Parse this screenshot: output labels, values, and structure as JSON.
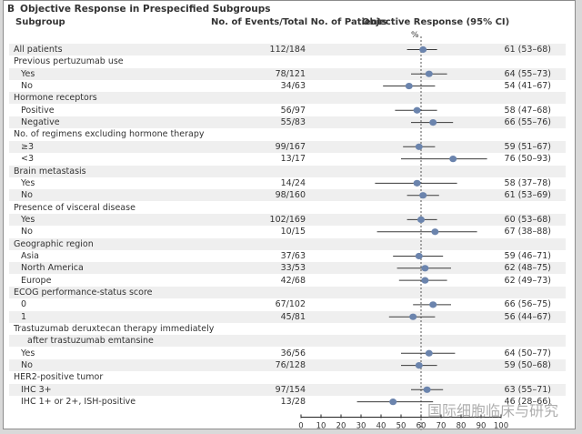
{
  "panel_label": "B",
  "title": "Objective Response in Prespecified Subgroups",
  "headers": {
    "subgroup": "Subgroup",
    "events": "No. of Events/Total No. of Patients",
    "response": "Objective Response (95% CI)",
    "unit": "%"
  },
  "watermark": "国际细胞临床与研究",
  "colors": {
    "marker": "#6b84ad",
    "ci_line": "#3a3a3a",
    "shade": "#efefef",
    "ref_line": "#555555"
  },
  "chart_data": {
    "type": "forest",
    "title": "Objective Response in Prespecified Subgroups",
    "xlabel": "%",
    "xlim": [
      0,
      100
    ],
    "xticks": [
      0,
      10,
      20,
      30,
      40,
      50,
      60,
      70,
      80,
      90,
      100
    ],
    "reference_line": 60,
    "rows": [
      {
        "label": "All patients",
        "kind": "item",
        "events": "112/184",
        "estimate": 61,
        "low": 53,
        "high": 68,
        "text": "61 (53–68)"
      },
      {
        "label": "Previous pertuzumab use",
        "kind": "group"
      },
      {
        "label": "Yes",
        "kind": "sub",
        "events": "78/121",
        "estimate": 64,
        "low": 55,
        "high": 73,
        "text": "64 (55–73)"
      },
      {
        "label": "No",
        "kind": "sub",
        "events": "34/63",
        "estimate": 54,
        "low": 41,
        "high": 67,
        "text": "54 (41–67)"
      },
      {
        "label": "Hormone receptors",
        "kind": "group"
      },
      {
        "label": "Positive",
        "kind": "sub",
        "events": "56/97",
        "estimate": 58,
        "low": 47,
        "high": 68,
        "text": "58 (47–68)"
      },
      {
        "label": "Negative",
        "kind": "sub",
        "events": "55/83",
        "estimate": 66,
        "low": 55,
        "high": 76,
        "text": "66 (55–76)"
      },
      {
        "label": "No. of regimens excluding hormone therapy",
        "kind": "group"
      },
      {
        "label": "≥3",
        "kind": "sub",
        "events": "99/167",
        "estimate": 59,
        "low": 51,
        "high": 67,
        "text": "59 (51–67)"
      },
      {
        "label": "<3",
        "kind": "sub",
        "events": "13/17",
        "estimate": 76,
        "low": 50,
        "high": 93,
        "text": "76 (50–93)"
      },
      {
        "label": "Brain metastasis",
        "kind": "group"
      },
      {
        "label": "Yes",
        "kind": "sub",
        "events": "14/24",
        "estimate": 58,
        "low": 37,
        "high": 78,
        "text": "58 (37–78)"
      },
      {
        "label": "No",
        "kind": "sub",
        "events": "98/160",
        "estimate": 61,
        "low": 53,
        "high": 69,
        "text": "61 (53–69)"
      },
      {
        "label": "Presence of visceral disease",
        "kind": "group"
      },
      {
        "label": "Yes",
        "kind": "sub",
        "events": "102/169",
        "estimate": 60,
        "low": 53,
        "high": 68,
        "text": "60 (53–68)"
      },
      {
        "label": "No",
        "kind": "sub",
        "events": "10/15",
        "estimate": 67,
        "low": 38,
        "high": 88,
        "text": "67 (38–88)"
      },
      {
        "label": "Geographic region",
        "kind": "group"
      },
      {
        "label": "Asia",
        "kind": "sub",
        "events": "37/63",
        "estimate": 59,
        "low": 46,
        "high": 71,
        "text": "59 (46–71)"
      },
      {
        "label": "North America",
        "kind": "sub",
        "events": "33/53",
        "estimate": 62,
        "low": 48,
        "high": 75,
        "text": "62 (48–75)"
      },
      {
        "label": "Europe",
        "kind": "sub",
        "events": "42/68",
        "estimate": 62,
        "low": 49,
        "high": 73,
        "text": "62 (49–73)"
      },
      {
        "label": "ECOG performance-status score",
        "kind": "group"
      },
      {
        "label": "0",
        "kind": "sub",
        "events": "67/102",
        "estimate": 66,
        "low": 56,
        "high": 75,
        "text": "66 (56–75)"
      },
      {
        "label": "1",
        "kind": "sub",
        "events": "45/81",
        "estimate": 56,
        "low": 44,
        "high": 67,
        "text": "56 (44–67)"
      },
      {
        "label": "Trastuzumab deruxtecan therapy immediately",
        "kind": "group"
      },
      {
        "label": "after trastuzumab emtansine",
        "kind": "cont"
      },
      {
        "label": "Yes",
        "kind": "sub",
        "events": "36/56",
        "estimate": 64,
        "low": 50,
        "high": 77,
        "text": "64 (50–77)"
      },
      {
        "label": "No",
        "kind": "sub",
        "events": "76/128",
        "estimate": 59,
        "low": 50,
        "high": 68,
        "text": "59 (50–68)"
      },
      {
        "label": "HER2-positive tumor",
        "kind": "group"
      },
      {
        "label": "IHC 3+",
        "kind": "sub",
        "events": "97/154",
        "estimate": 63,
        "low": 55,
        "high": 71,
        "text": "63 (55–71)"
      },
      {
        "label": "IHC 1+ or 2+, ISH-positive",
        "kind": "sub",
        "events": "13/28",
        "estimate": 46,
        "low": 28,
        "high": 66,
        "text": "46 (28–66)"
      }
    ]
  }
}
